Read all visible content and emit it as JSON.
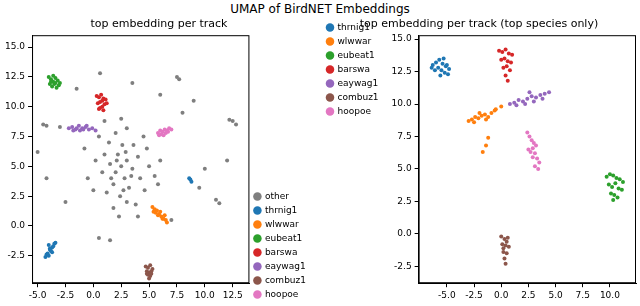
{
  "title": "UMAP of BirdNET Embeddings",
  "chart_data": [
    {
      "type": "scatter",
      "title": "top embedding per track",
      "marker": "o",
      "grid": false,
      "legend": "lower right",
      "xlim": [
        -5.5,
        14
      ],
      "ylim": [
        -4.8,
        16
      ],
      "xticks": [
        {
          "value": -5,
          "label": "-5.0"
        },
        -2.5,
        {
          "value": 0,
          "label": "0.0"
        },
        2.5,
        {
          "value": 5,
          "label": "5.0"
        },
        7.5,
        {
          "value": 10,
          "label": "10.0"
        },
        12.5
      ],
      "yticks": [
        -2.5,
        {
          "value": 0,
          "label": "0.0"
        },
        2.5,
        {
          "value": 5,
          "label": "5.0"
        },
        7.5,
        {
          "value": 10,
          "label": "10.0"
        },
        12.5,
        {
          "value": 15,
          "label": "15.0"
        }
      ],
      "series": [
        {
          "name": "other",
          "color": "#7f7f7f",
          "x": [
            2.5,
            2.0,
            3.0,
            1.5,
            3.5,
            2.2,
            2.8,
            1.8,
            3.2,
            2.6,
            1.0,
            4.0,
            4.2,
            0.8,
            1.4,
            3.6,
            2.4,
            3.0,
            1.2,
            4.6,
            0.2,
            5.0,
            4.8,
            0.5,
            2.0,
            3.0,
            -0.5,
            5.5,
            1.8,
            3.8,
            2.7,
            2.1,
            2.9,
            1.6,
            3.4,
            6.0,
            -0.8,
            0.0,
            4.5,
            2.5,
            1.0,
            5.8,
            2.3,
            4.0,
            12.5,
            12.8,
            12.2,
            7.5,
            7.7,
            -4.2,
            -4.5,
            -3.0,
            10.0,
            9.5,
            11.0,
            11.3,
            -5.0,
            -4.2,
            1.5,
            0.5,
            8.0,
            9.0,
            7.0,
            -1.5,
            0.6,
            12.0,
            3.5,
            -2.5,
            6.0
          ],
          "y": [
            5.0,
            4.5,
            5.5,
            5.2,
            4.8,
            6.0,
            4.0,
            3.5,
            3.2,
            6.8,
            6.0,
            5.8,
            4.0,
            4.5,
            7.0,
            6.8,
            2.5,
            2.0,
            2.8,
            3.0,
            5.5,
            5.0,
            6.5,
            7.5,
            7.8,
            8.2,
            4.0,
            4.2,
            1.5,
            1.8,
            3.0,
            5.5,
            6.2,
            4.0,
            4.2,
            5.5,
            6.5,
            3.0,
            7.5,
            9.0,
            8.8,
            3.5,
            0.8,
            0.8,
            8.8,
            8.5,
            8.9,
            12.5,
            12.3,
            8.4,
            8.5,
            8.3,
            4.8,
            3.2,
            2.2,
            1.9,
            6.2,
            4.0,
            -1.2,
            -1.0,
            9.5,
            10.5,
            0.5,
            11.5,
            12.8,
            5.5,
            12.0,
            2.0,
            11.0
          ]
        },
        {
          "name": "thrnig1",
          "color": "#1f77b4",
          "x": [
            -4.3,
            -4.1,
            -3.9,
            -3.7,
            -3.5,
            -4.0,
            -3.8,
            -3.6,
            -4.2,
            -3.9,
            -3.7,
            -3.4,
            -4.0,
            8.7,
            8.8,
            8.6
          ],
          "y": [
            -2.6,
            -2.3,
            -2.0,
            -1.8,
            -1.5,
            -2.5,
            -2.1,
            -1.7,
            -2.4,
            -1.9,
            -2.2,
            -1.4,
            -1.6,
            3.9,
            3.7,
            4.0
          ]
        },
        {
          "name": "wlwwar",
          "color": "#ff7f0e",
          "x": [
            5.3,
            5.5,
            5.7,
            5.9,
            6.1,
            6.3,
            6.5,
            5.6,
            5.8,
            6.0,
            6.2,
            6.4,
            5.4,
            6.6
          ],
          "y": [
            1.6,
            1.4,
            1.3,
            1.0,
            0.8,
            0.6,
            0.5,
            1.1,
            0.9,
            1.2,
            0.6,
            0.9,
            1.2,
            0.3
          ]
        },
        {
          "name": "eubeat1",
          "color": "#2ca02c",
          "x": [
            -4.0,
            -3.8,
            -3.6,
            -3.4,
            -3.2,
            -3.0,
            -3.9,
            -3.7,
            -3.5,
            -3.3,
            -3.1,
            -3.6,
            -3.4,
            -3.8
          ],
          "y": [
            12.5,
            12.3,
            12.6,
            12.4,
            12.2,
            12.0,
            11.9,
            11.7,
            11.9,
            11.6,
            11.8,
            12.1,
            12.0,
            12.1
          ]
        },
        {
          "name": "barswa",
          "color": "#d62728",
          "x": [
            0.3,
            0.5,
            0.7,
            0.9,
            1.1,
            0.4,
            0.6,
            0.8,
            1.0,
            1.2,
            0.6,
            0.8,
            0.5,
            0.9
          ],
          "y": [
            10.9,
            10.8,
            11.0,
            10.7,
            10.6,
            10.3,
            10.4,
            10.5,
            10.2,
            10.3,
            9.9,
            10.0,
            9.8,
            9.7
          ]
        },
        {
          "name": "eaywag1",
          "color": "#9467bd",
          "x": [
            -2.2,
            -1.9,
            -1.6,
            -1.3,
            -1.0,
            -0.7,
            -0.4,
            -0.1,
            0.2,
            -1.8,
            -1.2,
            -0.6,
            -1.5,
            -0.9
          ],
          "y": [
            8.2,
            8.3,
            8.1,
            8.4,
            8.2,
            8.3,
            8.1,
            8.2,
            8.0,
            8.0,
            8.0,
            8.4,
            8.2,
            8.1
          ]
        },
        {
          "name": "combuz1",
          "color": "#8c564b",
          "x": [
            4.7,
            4.9,
            5.1,
            5.3,
            4.8,
            5.0,
            5.2,
            4.9,
            5.1,
            5.0,
            4.8,
            5.2
          ],
          "y": [
            -3.4,
            -3.5,
            -3.3,
            -3.6,
            -3.8,
            -3.9,
            -3.8,
            -4.1,
            -4.2,
            -4.4,
            -4.0,
            -4.0
          ]
        },
        {
          "name": "hoopoe",
          "color": "#e377c2",
          "x": [
            5.8,
            6.0,
            6.2,
            6.4,
            6.6,
            6.8,
            7.0,
            6.1,
            6.3,
            6.5,
            6.7,
            5.9
          ],
          "y": [
            7.8,
            8.0,
            7.9,
            8.1,
            8.0,
            8.2,
            8.1,
            7.7,
            7.6,
            7.8,
            7.9,
            7.6
          ]
        }
      ]
    },
    {
      "type": "scatter",
      "title": "top embedding per track (top species only)",
      "marker": "o",
      "grid": false,
      "legend": "upper left",
      "xlim": [
        -7.6,
        12.4
      ],
      "ylim": [
        -3.8,
        15.3
      ],
      "xticks": [
        {
          "value": -5,
          "label": "-5.0"
        },
        -2.5,
        {
          "value": 0,
          "label": "0.0"
        },
        2.5,
        {
          "value": 5,
          "label": "5.0"
        },
        7.5,
        {
          "value": 10,
          "label": "10.0"
        }
      ],
      "yticks": [
        -2.5,
        {
          "value": 0,
          "label": "0.0"
        },
        2.5,
        {
          "value": 5,
          "label": "5.0"
        },
        7.5,
        {
          "value": 10,
          "label": "10.0"
        },
        12.5,
        {
          "value": 15,
          "label": "15.0"
        }
      ],
      "series": [
        {
          "name": "thrnig1",
          "color": "#1f77b4",
          "x": [
            -6.3,
            -6.0,
            -5.7,
            -5.4,
            -5.1,
            -4.8,
            -6.1,
            -5.8,
            -5.5,
            -5.2,
            -4.9,
            -5.6,
            -6.4,
            -5.0,
            -5.3
          ],
          "y": [
            13.0,
            13.2,
            13.4,
            13.1,
            12.9,
            12.7,
            12.6,
            12.8,
            12.6,
            12.4,
            12.3,
            12.2,
            12.8,
            13.0,
            13.5
          ]
        },
        {
          "name": "wlwwar",
          "color": "#ff7f0e",
          "x": [
            -3.0,
            -2.7,
            -2.4,
            -2.1,
            -1.8,
            -1.5,
            -1.2,
            -0.9,
            -0.6,
            -2.5,
            -2.0,
            -1.4,
            -1.7,
            -1.4,
            -1.2,
            -0.5,
            0.0
          ],
          "y": [
            8.7,
            8.8,
            9.0,
            8.9,
            9.1,
            9.2,
            9.0,
            9.3,
            9.5,
            8.6,
            9.3,
            8.8,
            6.3,
            6.8,
            7.4,
            9.6,
            9.8
          ]
        },
        {
          "name": "eubeat1",
          "color": "#2ca02c",
          "x": [
            9.7,
            10.0,
            10.3,
            10.6,
            10.9,
            11.2,
            9.9,
            10.2,
            10.5,
            10.8,
            11.1,
            10.4,
            10.1,
            10.7,
            10.3
          ],
          "y": [
            4.4,
            4.6,
            4.5,
            4.3,
            4.2,
            4.0,
            3.8,
            3.6,
            3.9,
            3.5,
            3.4,
            3.0,
            3.1,
            2.8,
            2.6
          ]
        },
        {
          "name": "barswa",
          "color": "#d62728",
          "x": [
            -0.2,
            0.1,
            0.4,
            0.7,
            1.0,
            0.0,
            0.3,
            0.6,
            0.9,
            0.2,
            0.5,
            0.8,
            0.4,
            0.6
          ],
          "y": [
            14.1,
            14.0,
            14.2,
            13.9,
            13.8,
            13.4,
            13.5,
            13.3,
            13.2,
            12.8,
            12.9,
            12.6,
            12.2,
            11.8
          ]
        },
        {
          "name": "eaywag1",
          "color": "#9467bd",
          "x": [
            0.8,
            1.2,
            1.6,
            2.0,
            2.4,
            2.8,
            3.2,
            3.6,
            4.0,
            4.4,
            1.4,
            2.2,
            3.0,
            3.8,
            2.6
          ],
          "y": [
            10.0,
            10.1,
            10.3,
            10.2,
            10.4,
            10.6,
            10.5,
            10.7,
            10.8,
            10.9,
            9.9,
            10.0,
            10.2,
            10.4,
            10.9
          ]
        },
        {
          "name": "combuz1",
          "color": "#8c564b",
          "x": [
            0.0,
            0.3,
            0.6,
            0.1,
            0.4,
            0.7,
            0.2,
            0.5,
            0.3,
            0.4,
            0.2,
            0.5
          ],
          "y": [
            -0.2,
            -0.4,
            -0.3,
            -0.8,
            -0.9,
            -1.0,
            -1.4,
            -1.5,
            -1.9,
            -2.3,
            -1.1,
            -0.6
          ]
        },
        {
          "name": "hoopoe",
          "color": "#e377c2",
          "x": [
            2.4,
            2.6,
            2.8,
            3.0,
            3.2,
            2.5,
            2.7,
            2.9,
            3.1,
            3.3,
            3.5,
            2.9,
            3.1,
            3.4
          ],
          "y": [
            7.8,
            7.5,
            7.2,
            7.0,
            6.8,
            6.5,
            6.3,
            6.6,
            6.2,
            5.8,
            5.5,
            5.9,
            5.2,
            5.0
          ]
        }
      ]
    }
  ]
}
